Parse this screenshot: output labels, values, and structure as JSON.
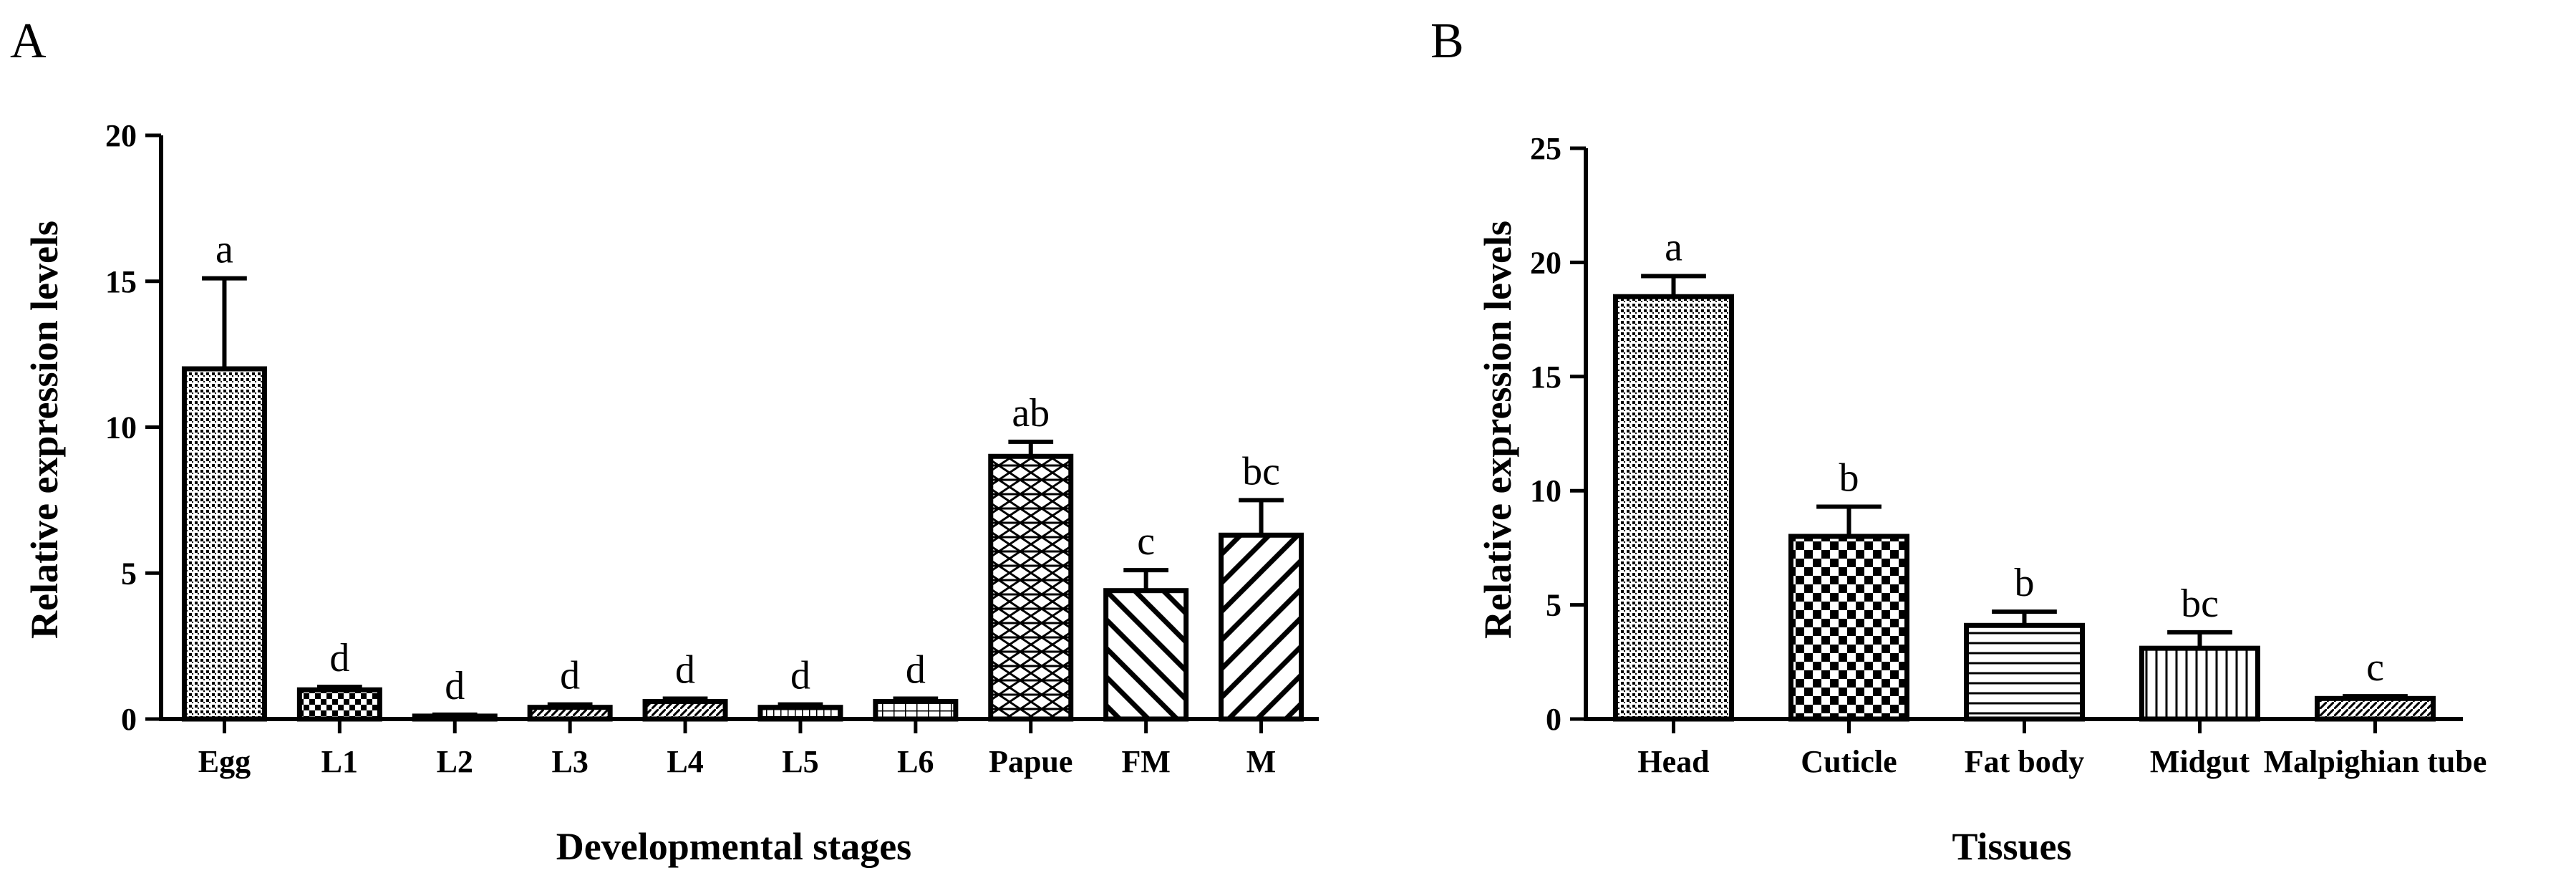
{
  "chart_data": [
    {
      "panel": "A",
      "type": "bar",
      "title": "",
      "xlabel": "Developmental stages",
      "ylabel": "Relative expression levels",
      "ylim": [
        0,
        20
      ],
      "yticks": [
        0,
        5,
        10,
        15,
        20
      ],
      "categories": [
        "Egg",
        "L1",
        "L2",
        "L3",
        "L4",
        "L5",
        "L6",
        "Papue",
        "FM",
        "M"
      ],
      "values": [
        12.0,
        1.0,
        0.1,
        0.4,
        0.6,
        0.4,
        0.6,
        9.0,
        4.4,
        6.3
      ],
      "errors": [
        3.1,
        0.1,
        0.05,
        0.1,
        0.1,
        0.1,
        0.1,
        0.5,
        0.7,
        1.2
      ],
      "annotations": [
        "a",
        "d",
        "d",
        "d",
        "d",
        "d",
        "d",
        "ab",
        "c",
        "bc"
      ],
      "patterns": [
        "dots",
        "checker",
        "checker",
        "diag-fine",
        "diag-fine",
        "grid-fine",
        "grid",
        "brick",
        "diag-back",
        "diag"
      ]
    },
    {
      "panel": "B",
      "type": "bar",
      "title": "",
      "xlabel": "Tissues",
      "ylabel": "Relative expression levels",
      "ylim": [
        0,
        25
      ],
      "yticks": [
        0,
        5,
        10,
        15,
        20,
        25
      ],
      "categories": [
        "Head",
        "Cuticle",
        "Fat body",
        "Midgut",
        "Malpighian tube"
      ],
      "values": [
        18.5,
        8.0,
        4.1,
        3.1,
        0.9
      ],
      "errors": [
        0.9,
        1.3,
        0.6,
        0.7,
        0.1
      ],
      "annotations": [
        "a",
        "b",
        "b",
        "bc",
        "c"
      ],
      "patterns": [
        "dots",
        "checker-big",
        "hlines",
        "vlines",
        "diag-fine"
      ]
    }
  ]
}
